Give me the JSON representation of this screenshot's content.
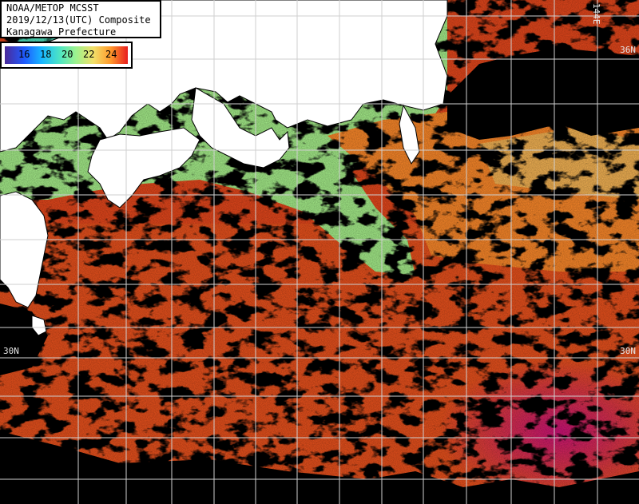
{
  "title": {
    "line1": "NOAA/METOP MCSST",
    "line2": "2019/12/13(UTC) Composite",
    "line3": "Kanagawa Prefecture"
  },
  "colorbar": {
    "ticks": [
      "16",
      "18",
      "20",
      "22",
      "24"
    ],
    "colors": [
      "#4b2a9a",
      "#1f5bff",
      "#18b6ff",
      "#4fe6c2",
      "#9ef28e",
      "#f2e06a",
      "#ff9a2c",
      "#e81d1d"
    ]
  },
  "grid_labels": {
    "lat_36_right": "36N",
    "lat_30_left": "30N",
    "lat_30_right": "30N",
    "lon_144": "144E"
  },
  "colors": {
    "land": "#ffffff",
    "cloud": "#000000",
    "grid": "#c8c8c8",
    "warm": "#e3421a",
    "warmest": "#ff6a10",
    "hot_patch": "#c8106a",
    "cool": "#9ff08a",
    "cold": "#2a8cff"
  }
}
